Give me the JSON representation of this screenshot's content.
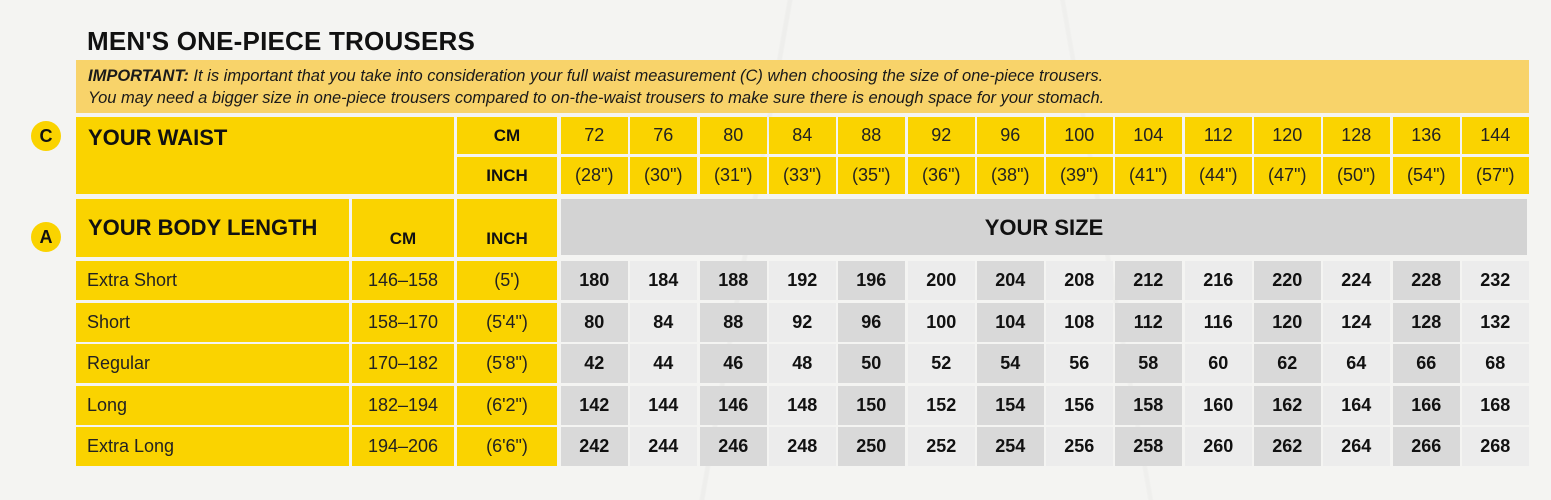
{
  "title": "MEN'S ONE-PIECE TROUSERS",
  "note": {
    "important_label": "IMPORTANT:",
    "line1": " It is important that you take into consideration your full waist measurement (C) when choosing the size of one-piece trousers.",
    "line2": "You may need a bigger size in one-piece trousers compared to on-the-waist trousers to make sure there is enough space for your stomach."
  },
  "waist": {
    "badge": "C",
    "label": "YOUR WAIST",
    "cm_label": "CM",
    "inch_label": "INCH",
    "cm": [
      "72",
      "76",
      "80",
      "84",
      "88",
      "92",
      "96",
      "100",
      "104",
      "112",
      "120",
      "128",
      "136",
      "144"
    ],
    "inch": [
      "(28\")",
      "(30\")",
      "(31\")",
      "(33\")",
      "(35\")",
      "(36\")",
      "(38\")",
      "(39\")",
      "(41\")",
      "(44\")",
      "(47\")",
      "(50\")",
      "(54\")",
      "(57\")"
    ]
  },
  "body": {
    "badge": "A",
    "label": "YOUR BODY LENGTH",
    "cm_label": "CM",
    "inch_label": "INCH",
    "your_size_label": "YOUR SIZE",
    "rows": [
      {
        "name": "Extra Short",
        "cm": "146–158",
        "inch": "(5')",
        "sizes": [
          "180",
          "184",
          "188",
          "192",
          "196",
          "200",
          "204",
          "208",
          "212",
          "216",
          "220",
          "224",
          "228",
          "232"
        ]
      },
      {
        "name": "Short",
        "cm": "158–170",
        "inch": "(5'4\")",
        "sizes": [
          "80",
          "84",
          "88",
          "92",
          "96",
          "100",
          "104",
          "108",
          "112",
          "116",
          "120",
          "124",
          "128",
          "132"
        ]
      },
      {
        "name": "Regular",
        "cm": "170–182",
        "inch": "(5'8\")",
        "sizes": [
          "42",
          "44",
          "46",
          "48",
          "50",
          "52",
          "54",
          "56",
          "58",
          "60",
          "62",
          "64",
          "66",
          "68"
        ]
      },
      {
        "name": "Long",
        "cm": "182–194",
        "inch": "(6'2\")",
        "sizes": [
          "142",
          "144",
          "146",
          "148",
          "150",
          "152",
          "154",
          "156",
          "158",
          "160",
          "162",
          "164",
          "166",
          "168"
        ]
      },
      {
        "name": "Extra Long",
        "cm": "194–206",
        "inch": "(6'6\")",
        "sizes": [
          "242",
          "244",
          "246",
          "248",
          "250",
          "252",
          "254",
          "256",
          "258",
          "260",
          "262",
          "264",
          "266",
          "268"
        ]
      }
    ]
  }
}
